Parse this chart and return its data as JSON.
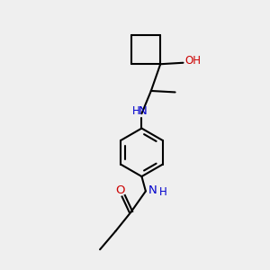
{
  "background_color": "#efefef",
  "bond_color": "#000000",
  "N_color": "#0000cc",
  "O_color": "#cc0000",
  "line_width": 1.5,
  "figsize": [
    3.0,
    3.0
  ],
  "dpi": 100,
  "xlim": [
    0,
    10
  ],
  "ylim": [
    0,
    10
  ]
}
